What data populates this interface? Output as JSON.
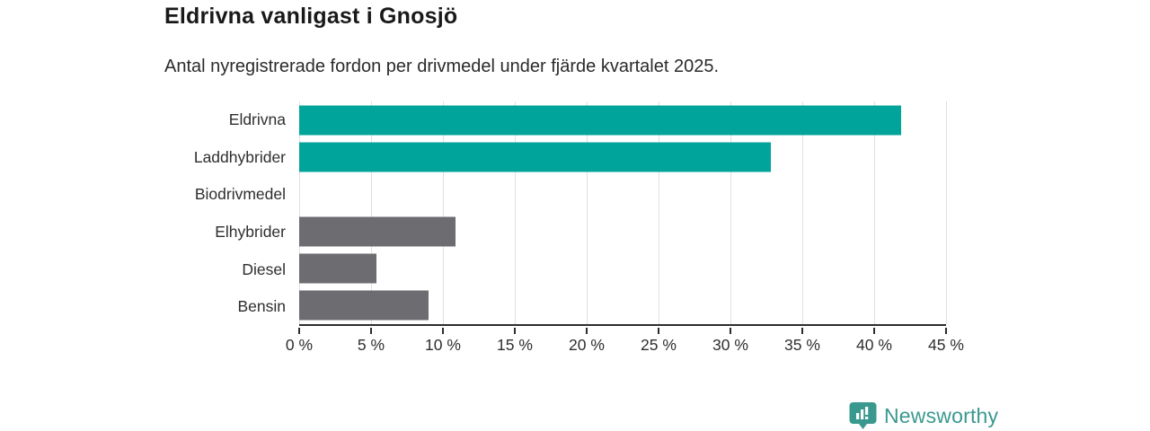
{
  "header": {
    "title": "Eldrivna vanligast i Gnosjö",
    "subtitle": "Antal nyregistrerade fordon per drivmedel under fjärde kvartalet 2025."
  },
  "chart_data": {
    "type": "bar",
    "orientation": "horizontal",
    "title": "Eldrivna vanligast i Gnosjö",
    "subtitle": "Antal nyregistrerade fordon per drivmedel under fjärde kvartalet 2025.",
    "categories": [
      "Eldrivna",
      "Laddhybrider",
      "Biodrivmedel",
      "Elhybrider",
      "Diesel",
      "Bensin"
    ],
    "values": [
      41.9,
      32.8,
      0,
      10.9,
      5.4,
      9.0
    ],
    "unit": "%",
    "bar_colors": [
      "#00a49b",
      "#00a49b",
      "#00a49b",
      "#6c6c71",
      "#6c6c71",
      "#6c6c71"
    ],
    "xlim": [
      0,
      45
    ],
    "x_ticks": [
      0,
      5,
      10,
      15,
      20,
      25,
      30,
      35,
      40,
      45
    ],
    "x_tick_labels": [
      "0 %",
      "5 %",
      "10 %",
      "15 %",
      "20 %",
      "25 %",
      "30 %",
      "35 %",
      "40 %",
      "45 %"
    ],
    "grid": true,
    "legend": "none"
  },
  "colors": {
    "accent_teal": "#00a49b",
    "neutral_gray": "#6c6c71",
    "gridline": "#e0e0e0",
    "axis": "#2d2d2d",
    "text": "#2e2e2e",
    "brand": "#3a998f"
  },
  "footer": {
    "brand": "Newsworthy",
    "logo_icon": "newsworthy-chart-pin-icon"
  }
}
